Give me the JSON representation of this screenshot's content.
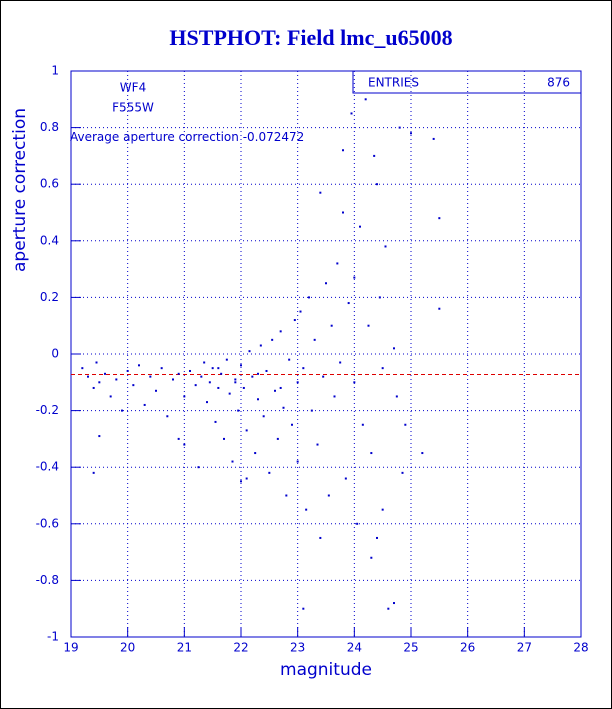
{
  "chart_data": {
    "type": "scatter",
    "title": "HSTPHOT: Field lmc_u65008",
    "x_label": "magnitude",
    "y_label": "aperture correction",
    "notes": [
      "WF4",
      "F555W"
    ],
    "mean_label": "Average aperture correction",
    "mean": -0.072472,
    "stats_label": "ENTRIES",
    "entries": 876,
    "color": "#0000cc",
    "mean_color": "#dd0000",
    "grid": true,
    "xlim": [
      19,
      28
    ],
    "xticks": [
      19,
      20,
      21,
      22,
      23,
      24,
      25,
      26,
      27,
      28
    ],
    "ylim": [
      -1,
      1
    ],
    "yticks": [
      -1,
      -0.8,
      -0.6,
      -0.4,
      -0.2,
      0,
      0.2,
      0.4,
      0.6,
      0.8,
      1
    ],
    "x": [
      19.2,
      19.3,
      19.4,
      19.45,
      19.5,
      19.5,
      19.6,
      19.7,
      19.8,
      19.9,
      20.0,
      20.1,
      20.2,
      20.3,
      20.4,
      20.5,
      20.6,
      20.7,
      20.8,
      20.9,
      21.0,
      21.0,
      21.1,
      21.2,
      21.25,
      21.3,
      21.35,
      21.4,
      21.45,
      21.5,
      21.55,
      21.6,
      21.65,
      21.7,
      21.75,
      21.8,
      21.85,
      21.9,
      21.95,
      22.0,
      22.0,
      22.05,
      22.1,
      22.15,
      22.2,
      22.25,
      22.3,
      22.35,
      22.4,
      22.45,
      22.5,
      22.55,
      22.6,
      22.65,
      22.7,
      22.75,
      22.8,
      22.85,
      22.9,
      22.95,
      23.0,
      23.0,
      23.05,
      23.1,
      23.15,
      23.2,
      23.25,
      23.3,
      23.35,
      23.4,
      23.45,
      23.5,
      23.55,
      23.6,
      23.65,
      23.7,
      23.75,
      23.8,
      23.85,
      23.9,
      23.95,
      24.0,
      24.0,
      24.05,
      24.1,
      24.15,
      24.2,
      24.25,
      24.3,
      24.35,
      24.4,
      24.45,
      24.5,
      24.55,
      24.6,
      24.7,
      24.75,
      24.8,
      24.85,
      24.9,
      25.0,
      25.2,
      25.5,
      25.5,
      25.4,
      24.7,
      24.3,
      23.4,
      23.1,
      22.1,
      20.9,
      19.4,
      23.8,
      24.4,
      24.5,
      22.7,
      22.3,
      21.9,
      21.6
    ],
    "values": [
      -0.05,
      -0.08,
      -0.12,
      -0.03,
      -0.1,
      -0.29,
      -0.07,
      -0.15,
      -0.09,
      -0.2,
      -0.06,
      -0.11,
      -0.04,
      -0.18,
      -0.08,
      -0.13,
      -0.05,
      -0.22,
      -0.09,
      -0.07,
      -0.15,
      -0.32,
      -0.06,
      -0.11,
      -0.4,
      -0.08,
      -0.03,
      -0.17,
      -0.1,
      -0.05,
      -0.24,
      -0.12,
      -0.07,
      -0.3,
      -0.02,
      -0.14,
      -0.38,
      -0.09,
      -0.2,
      -0.04,
      -0.45,
      -0.12,
      -0.27,
      0.01,
      -0.08,
      -0.35,
      -0.16,
      0.03,
      -0.22,
      -0.06,
      -0.42,
      0.05,
      -0.13,
      -0.3,
      0.08,
      -0.19,
      -0.5,
      -0.02,
      -0.25,
      0.12,
      -0.1,
      -0.38,
      0.15,
      -0.05,
      -0.55,
      0.2,
      -0.2,
      0.05,
      -0.32,
      0.57,
      -0.08,
      0.25,
      -0.5,
      0.1,
      -0.15,
      0.32,
      -0.03,
      0.5,
      -0.44,
      0.18,
      0.85,
      -0.1,
      0.27,
      -0.6,
      0.45,
      -0.25,
      0.9,
      0.1,
      -0.35,
      0.7,
      -0.65,
      0.2,
      -0.05,
      0.38,
      -0.9,
      0.02,
      -0.15,
      0.8,
      -0.42,
      -0.25,
      0.78,
      -0.35,
      0.16,
      0.48,
      0.76,
      -0.88,
      -0.72,
      -0.65,
      -0.9,
      -0.44,
      -0.3,
      -0.42,
      0.72,
      0.6,
      -0.55,
      -0.12,
      -0.07,
      -0.1,
      -0.05
    ]
  }
}
